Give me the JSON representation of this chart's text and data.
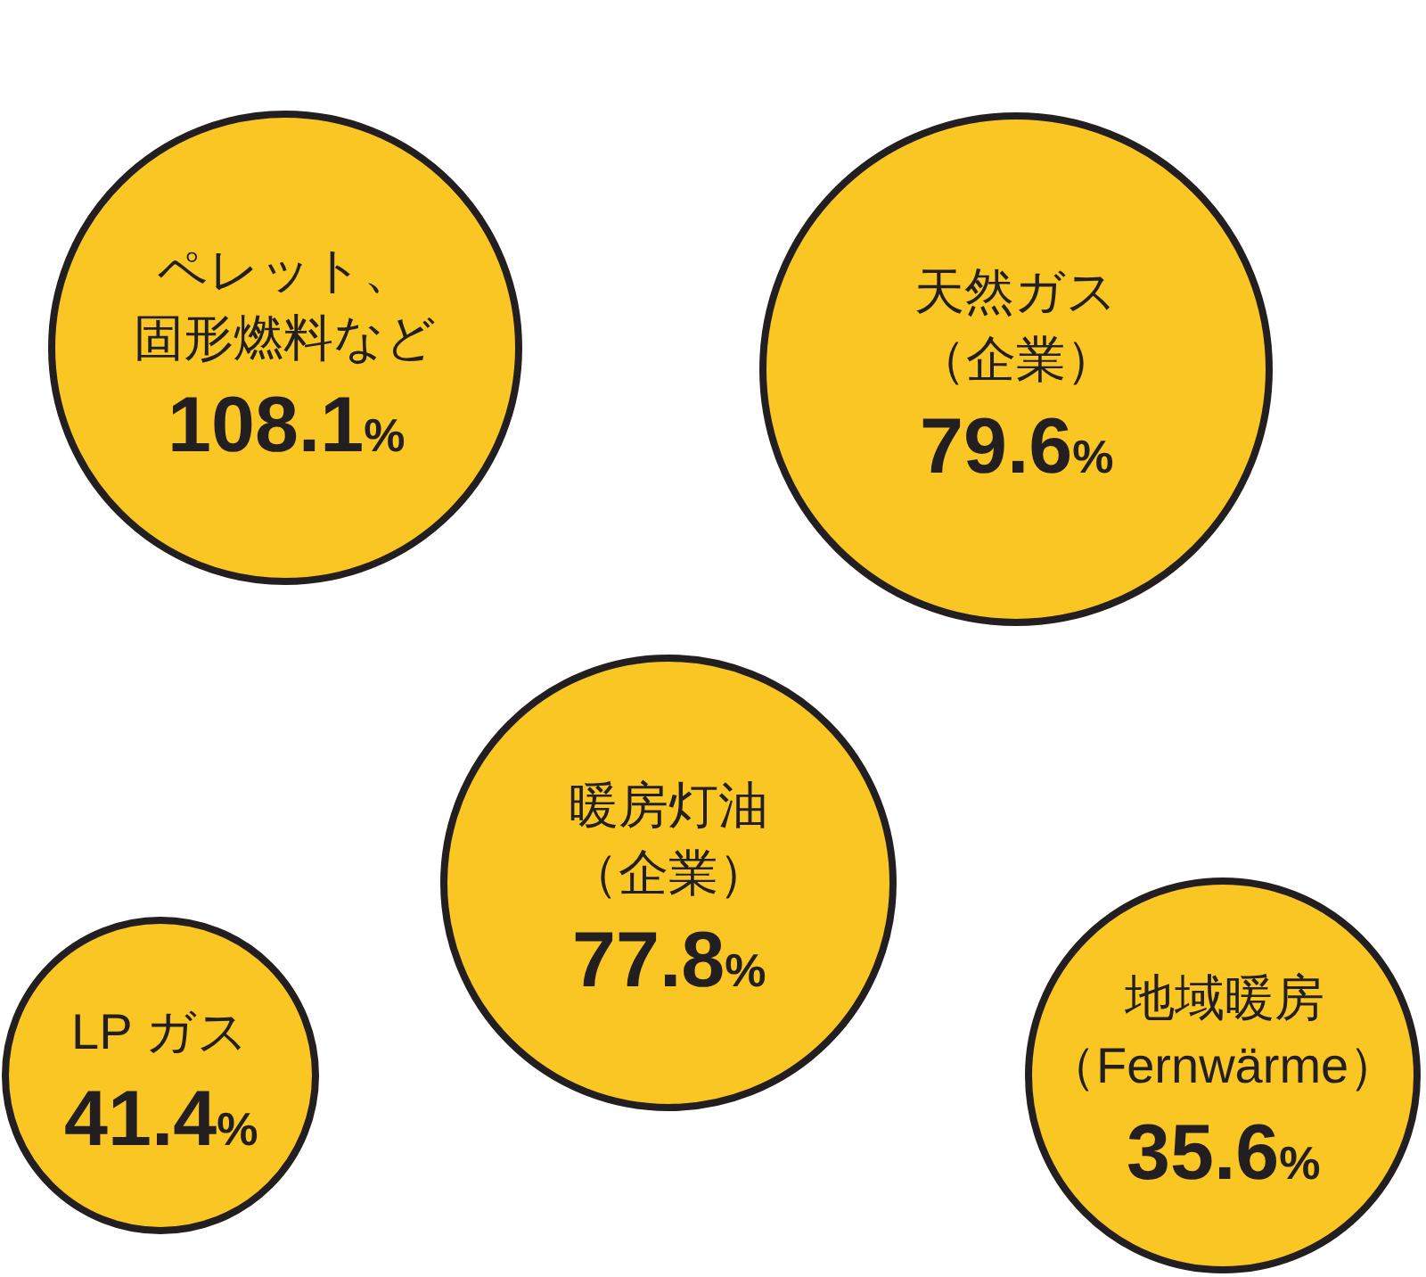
{
  "chart_data": {
    "type": "other",
    "categories": [
      "ペレット、固形燃料など",
      "天然ガス（企業）",
      "暖房灯油（企業）",
      "LP ガス",
      "地域暖房（Fernwärme）"
    ],
    "values": [
      108.1,
      79.6,
      77.8,
      41.4,
      35.6
    ],
    "value_labels": [
      "108.1%",
      "79.6%",
      "77.8%",
      "41.4%",
      "35.6%"
    ],
    "color": "#f9c623"
  }
}
